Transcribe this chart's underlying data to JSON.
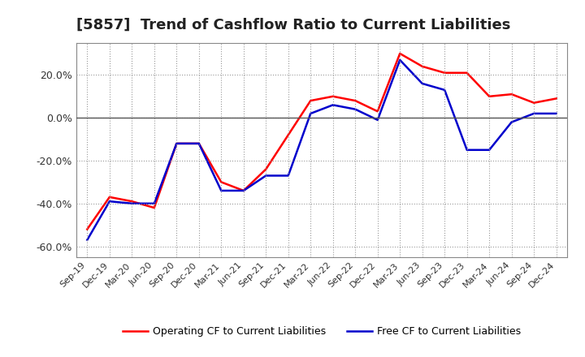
{
  "title": "[5857]  Trend of Cashflow Ratio to Current Liabilities",
  "labels": [
    "Sep-19",
    "Dec-19",
    "Mar-20",
    "Jun-20",
    "Sep-20",
    "Dec-20",
    "Mar-21",
    "Jun-21",
    "Sep-21",
    "Dec-21",
    "Mar-22",
    "Jun-22",
    "Sep-22",
    "Dec-22",
    "Mar-23",
    "Jun-23",
    "Sep-23",
    "Dec-23",
    "Mar-24",
    "Jun-24",
    "Sep-24",
    "Dec-24"
  ],
  "operating_cf": [
    -52,
    -37,
    -39,
    -42,
    -12,
    -12,
    -30,
    -34,
    -24,
    -8,
    8,
    10,
    8,
    3,
    30,
    24,
    21,
    21,
    10,
    11,
    7,
    9
  ],
  "free_cf": [
    -57,
    -39,
    -40,
    -40,
    -12,
    -12,
    -34,
    -34,
    -27,
    -27,
    2,
    6,
    4,
    -1,
    27,
    16,
    13,
    -15,
    -15,
    -2,
    2,
    2
  ],
  "operating_color": "#ff0000",
  "free_color": "#0000cc",
  "ylim_min": -65,
  "ylim_max": 35,
  "yticks": [
    -60,
    -40,
    -20,
    0,
    20
  ],
  "ytick_labels": [
    "-60.0%",
    "-40.0%",
    "-20.0%",
    "0.0%",
    "20.0%"
  ],
  "background_color": "#ffffff",
  "grid_color": "#999999",
  "line_width": 1.8,
  "title_fontsize": 13,
  "legend_label_op": "Operating CF to Current Liabilities",
  "legend_label_free": "Free CF to Current Liabilities"
}
